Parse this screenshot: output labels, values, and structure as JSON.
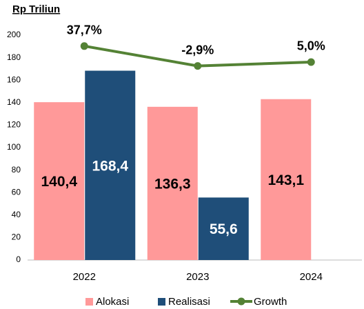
{
  "chart_data": {
    "type": "bar",
    "title": "Rp  Triliun",
    "categories": [
      "2022",
      "2023",
      "2024"
    ],
    "series": [
      {
        "name": "Alokasi",
        "type": "bar",
        "color": "#ff9999",
        "values": [
          140.4,
          136.3,
          143.1
        ],
        "value_labels": [
          "140,4",
          "136,3",
          "143,1"
        ]
      },
      {
        "name": "Realisasi",
        "type": "bar",
        "color": "#1f4e79",
        "values": [
          168.4,
          55.6,
          null
        ],
        "value_labels": [
          "168,4",
          "55,6",
          null
        ]
      },
      {
        "name": "Growth",
        "type": "line",
        "axis": "y2",
        "color": "#548235",
        "values": [
          37.7,
          -2.9,
          5.0
        ],
        "value_labels": [
          "37,7%",
          "-2,9%",
          "5,0%"
        ]
      }
    ],
    "ylim": [
      0,
      200
    ],
    "yticks": [
      0,
      20,
      40,
      60,
      80,
      100,
      120,
      140,
      160,
      180,
      200
    ],
    "y2lim": [
      -400,
      60
    ],
    "grid": false,
    "legend": "bottom"
  }
}
